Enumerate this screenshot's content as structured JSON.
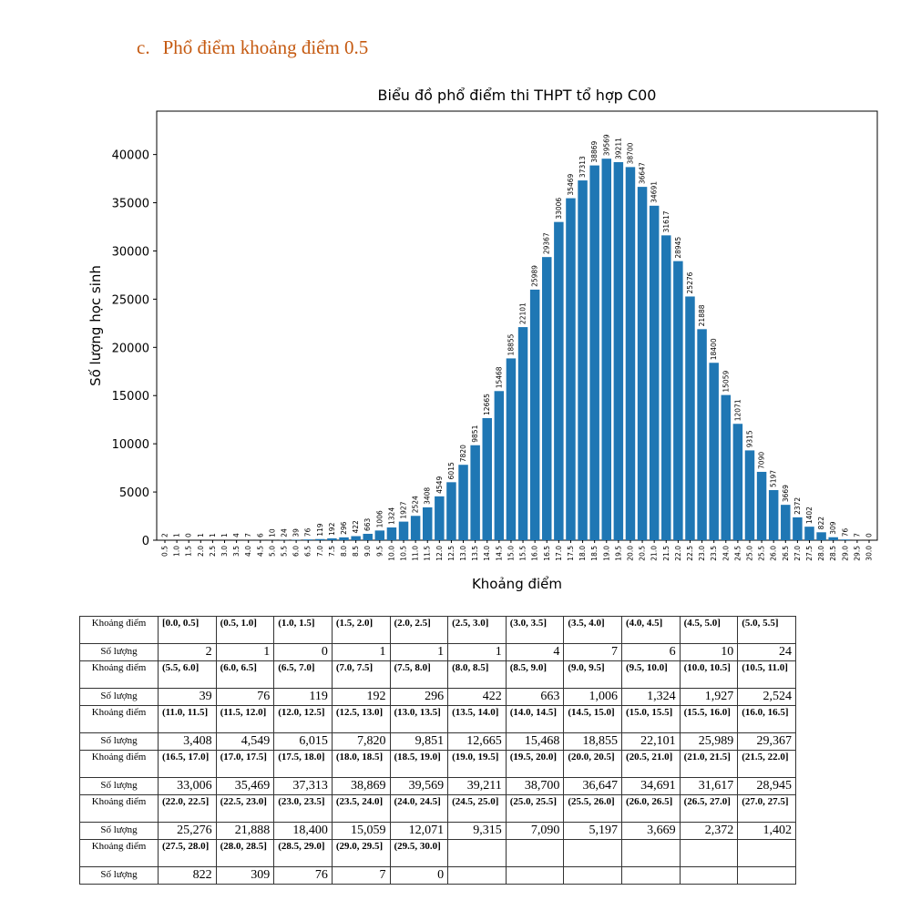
{
  "section": {
    "number": "c.",
    "title": "Phổ điểm khoảng điểm 0.5"
  },
  "chart_data": {
    "type": "bar",
    "title": "Biểu đồ phổ điểm thi THPT tổ hợp C00",
    "xlabel": "Khoảng điểm",
    "ylabel": "Số lượng học sinh",
    "ylim": [
      0,
      44500
    ],
    "yticks": [
      "0",
      "5000",
      "10000",
      "15000",
      "20000",
      "25000",
      "30000",
      "35000",
      "40000"
    ],
    "bar_color": "#1f77b4",
    "categories": [
      "0.5",
      "1.0",
      "1.5",
      "2.0",
      "2.5",
      "3.0",
      "3.5",
      "4.0",
      "4.5",
      "5.0",
      "5.5",
      "6.0",
      "6.5",
      "7.0",
      "7.5",
      "8.0",
      "8.5",
      "9.0",
      "9.5",
      "10.0",
      "10.5",
      "11.0",
      "11.5",
      "12.0",
      "12.5",
      "13.0",
      "13.5",
      "14.0",
      "14.5",
      "15.0",
      "15.5",
      "16.0",
      "16.5",
      "17.0",
      "17.5",
      "18.0",
      "18.5",
      "19.0",
      "19.5",
      "20.0",
      "20.5",
      "21.0",
      "21.5",
      "22.0",
      "22.5",
      "23.0",
      "23.5",
      "24.0",
      "24.5",
      "25.0",
      "25.5",
      "26.0",
      "26.5",
      "27.0",
      "27.5",
      "28.0",
      "28.5",
      "29.0",
      "29.5",
      "30.0"
    ],
    "values": [
      2,
      1,
      0,
      1,
      1,
      1,
      4,
      7,
      6,
      10,
      24,
      39,
      76,
      119,
      192,
      296,
      422,
      663,
      1006,
      1324,
      1927,
      2524,
      3408,
      4549,
      6015,
      7820,
      9851,
      12665,
      15468,
      18855,
      22101,
      25989,
      29367,
      33006,
      35469,
      37313,
      38869,
      39569,
      39211,
      38700,
      36647,
      34691,
      31617,
      28945,
      25276,
      21888,
      18400,
      15059,
      12071,
      9315,
      7090,
      5197,
      3669,
      2372,
      1402,
      822,
      309,
      76,
      7,
      0
    ]
  },
  "table": {
    "key_label": "Khoảng điểm",
    "count_label": "Số lượng",
    "groups": [
      {
        "keys": [
          "[0.0, 0.5]",
          "(0.5, 1.0]",
          "(1.0, 1.5]",
          "(1.5, 2.0]",
          "(2.0, 2.5]",
          "(2.5, 3.0]",
          "(3.0, 3.5]",
          "(3.5, 4.0]",
          "(4.0, 4.5]",
          "(4.5, 5.0]",
          "(5.0, 5.5]"
        ],
        "counts": [
          "2",
          "1",
          "0",
          "1",
          "1",
          "1",
          "4",
          "7",
          "6",
          "10",
          "24"
        ]
      },
      {
        "keys": [
          "(5.5, 6.0]",
          "(6.0, 6.5]",
          "(6.5, 7.0]",
          "(7.0, 7.5]",
          "(7.5, 8.0]",
          "(8.0, 8.5]",
          "(8.5, 9.0]",
          "(9.0, 9.5]",
          "(9.5, 10.0]",
          "(10.0, 10.5]",
          "(10.5, 11.0]"
        ],
        "counts": [
          "39",
          "76",
          "119",
          "192",
          "296",
          "422",
          "663",
          "1,006",
          "1,324",
          "1,927",
          "2,524"
        ]
      },
      {
        "keys": [
          "(11.0, 11.5]",
          "(11.5, 12.0]",
          "(12.0, 12.5]",
          "(12.5, 13.0]",
          "(13.0, 13.5]",
          "(13.5, 14.0]",
          "(14.0, 14.5]",
          "(14.5, 15.0]",
          "(15.0, 15.5]",
          "(15.5, 16.0]",
          "(16.0, 16.5]"
        ],
        "counts": [
          "3,408",
          "4,549",
          "6,015",
          "7,820",
          "9,851",
          "12,665",
          "15,468",
          "18,855",
          "22,101",
          "25,989",
          "29,367"
        ]
      },
      {
        "keys": [
          "(16.5, 17.0]",
          "(17.0, 17.5]",
          "(17.5, 18.0]",
          "(18.0, 18.5]",
          "(18.5, 19.0]",
          "(19.0, 19.5]",
          "(19.5, 20.0]",
          "(20.0, 20.5]",
          "(20.5, 21.0]",
          "(21.0, 21.5]",
          "(21.5, 22.0]"
        ],
        "counts": [
          "33,006",
          "35,469",
          "37,313",
          "38,869",
          "39,569",
          "39,211",
          "38,700",
          "36,647",
          "34,691",
          "31,617",
          "28,945"
        ]
      },
      {
        "keys": [
          "(22.0, 22.5]",
          "(22.5, 23.0]",
          "(23.0, 23.5]",
          "(23.5, 24.0]",
          "(24.0, 24.5]",
          "(24.5, 25.0]",
          "(25.0, 25.5]",
          "(25.5, 26.0]",
          "(26.0, 26.5]",
          "(26.5, 27.0]",
          "(27.0, 27.5]"
        ],
        "counts": [
          "25,276",
          "21,888",
          "18,400",
          "15,059",
          "12,071",
          "9,315",
          "7,090",
          "5,197",
          "3,669",
          "2,372",
          "1,402"
        ]
      },
      {
        "keys": [
          "(27.5, 28.0]",
          "(28.0, 28.5]",
          "(28.5, 29.0]",
          "(29.0, 29.5]",
          "(29.5, 30.0]",
          "",
          "",
          "",
          "",
          "",
          ""
        ],
        "counts": [
          "822",
          "309",
          "76",
          "7",
          "0",
          "",
          "",
          "",
          "",
          "",
          ""
        ]
      }
    ]
  }
}
